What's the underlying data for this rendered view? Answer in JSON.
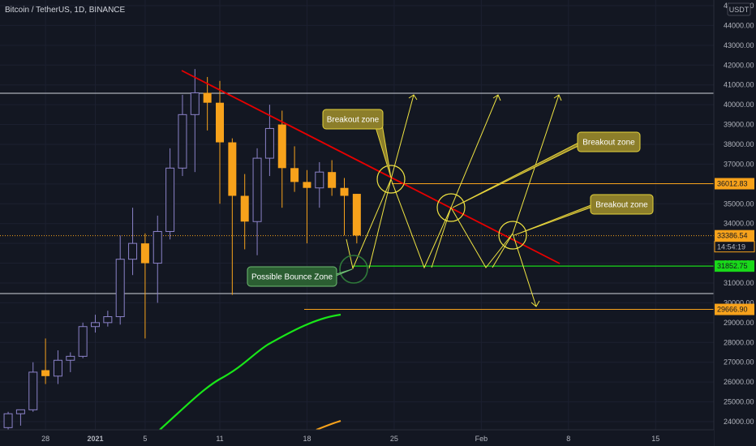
{
  "header": {
    "title": "Bitcoin / TetherUS, 1D, BINANCE",
    "currency_button": "USDT"
  },
  "colors": {
    "background": "#131722",
    "bull": "#8b82c8",
    "bear": "#f7a21b",
    "resistance_line": "#e60000",
    "projection": "#f0e442",
    "support": "#19d919",
    "orange_level": "#f7a21b",
    "white_level": "#d1d4dc",
    "ma_green": "#19e619",
    "ma_orange": "#f7a21b"
  },
  "chart_data": {
    "type": "candlestick",
    "symbol": "Bitcoin / TetherUS",
    "interval": "1D",
    "exchange": "BINANCE",
    "ylim": [
      23700,
      45700
    ],
    "x_ticks": [
      {
        "label": "28",
        "day": -4
      },
      {
        "label": "2021",
        "day": 0
      },
      {
        "label": "5",
        "day": 4
      },
      {
        "label": "11",
        "day": 10
      },
      {
        "label": "18",
        "day": 17
      },
      {
        "label": "25",
        "day": 24
      },
      {
        "label": "Feb",
        "day": 31
      },
      {
        "label": "8",
        "day": 38
      },
      {
        "label": "15",
        "day": 45
      }
    ],
    "y_ticks": [
      24000,
      25000,
      26000,
      27000,
      28000,
      29000,
      30000,
      31000,
      32000,
      33000,
      34000,
      35000,
      36000,
      37000,
      38000,
      39000,
      40000,
      41000,
      42000,
      43000,
      44000,
      45000
    ],
    "candles": [
      {
        "day": -7,
        "o": 23700,
        "h": 24500,
        "l": 23500,
        "c": 24400
      },
      {
        "day": -6,
        "o": 24400,
        "h": 24600,
        "l": 23800,
        "c": 24600
      },
      {
        "day": -5,
        "o": 24600,
        "h": 27000,
        "l": 24500,
        "c": 26500
      },
      {
        "day": -4,
        "o": 26600,
        "h": 28200,
        "l": 25900,
        "c": 26300
      },
      {
        "day": -3,
        "o": 26300,
        "h": 27600,
        "l": 25900,
        "c": 27100
      },
      {
        "day": -2,
        "o": 27100,
        "h": 27500,
        "l": 26500,
        "c": 27300
      },
      {
        "day": -1,
        "o": 27300,
        "h": 29000,
        "l": 27200,
        "c": 28800
      },
      {
        "day": 0,
        "o": 28800,
        "h": 29400,
        "l": 28500,
        "c": 29000
      },
      {
        "day": 1,
        "o": 29000,
        "h": 29600,
        "l": 28800,
        "c": 29300
      },
      {
        "day": 2,
        "o": 29300,
        "h": 33400,
        "l": 28900,
        "c": 32200
      },
      {
        "day": 3,
        "o": 32200,
        "h": 34800,
        "l": 31400,
        "c": 33000
      },
      {
        "day": 4,
        "o": 33000,
        "h": 33500,
        "l": 28200,
        "c": 32000
      },
      {
        "day": 5,
        "o": 32000,
        "h": 34400,
        "l": 30000,
        "c": 33600
      },
      {
        "day": 6,
        "o": 33600,
        "h": 37800,
        "l": 33200,
        "c": 36800
      },
      {
        "day": 7,
        "o": 36800,
        "h": 40500,
        "l": 36400,
        "c": 39500
      },
      {
        "day": 8,
        "o": 39500,
        "h": 41800,
        "l": 36600,
        "c": 40600
      },
      {
        "day": 9,
        "o": 40600,
        "h": 41400,
        "l": 38700,
        "c": 40100
      },
      {
        "day": 10,
        "o": 40100,
        "h": 41200,
        "l": 35000,
        "c": 38100
      },
      {
        "day": 11,
        "o": 38100,
        "h": 38300,
        "l": 30400,
        "c": 35400
      },
      {
        "day": 12,
        "o": 35400,
        "h": 36500,
        "l": 32700,
        "c": 34100
      },
      {
        "day": 13,
        "o": 34100,
        "h": 37800,
        "l": 32400,
        "c": 37300
      },
      {
        "day": 14,
        "o": 37300,
        "h": 40000,
        "l": 36400,
        "c": 38800
      },
      {
        "day": 15,
        "o": 39000,
        "h": 39700,
        "l": 34800,
        "c": 36800
      },
      {
        "day": 16,
        "o": 36800,
        "h": 37900,
        "l": 35600,
        "c": 36100
      },
      {
        "day": 17,
        "o": 36100,
        "h": 36700,
        "l": 33000,
        "c": 35800
      },
      {
        "day": 18,
        "o": 35800,
        "h": 37100,
        "l": 34800,
        "c": 36600
      },
      {
        "day": 19,
        "o": 36600,
        "h": 37200,
        "l": 35400,
        "c": 35800
      },
      {
        "day": 20,
        "o": 35800,
        "h": 36300,
        "l": 33400,
        "c": 35400
      },
      {
        "day": 21,
        "o": 35500,
        "h": 35500,
        "l": 33000,
        "c": 33400
      }
    ],
    "price_levels": [
      {
        "price": 36012.83,
        "label": "36012.83",
        "color": "#f7a21b"
      },
      {
        "price": 33386.54,
        "label": "33386.54",
        "color": "#f7a21b"
      },
      {
        "price": 31852.75,
        "label": "31852.75",
        "color": "#19d919"
      },
      {
        "price": 29666.9,
        "label": "29666.90",
        "color": "#f7a21b"
      }
    ],
    "countdown": "14:54:19",
    "annotations": [
      {
        "text": "Breakout zone"
      },
      {
        "text": "Breakout zone"
      },
      {
        "text": "Breakout zone"
      },
      {
        "text": "Possible Bounce Zone"
      }
    ]
  }
}
